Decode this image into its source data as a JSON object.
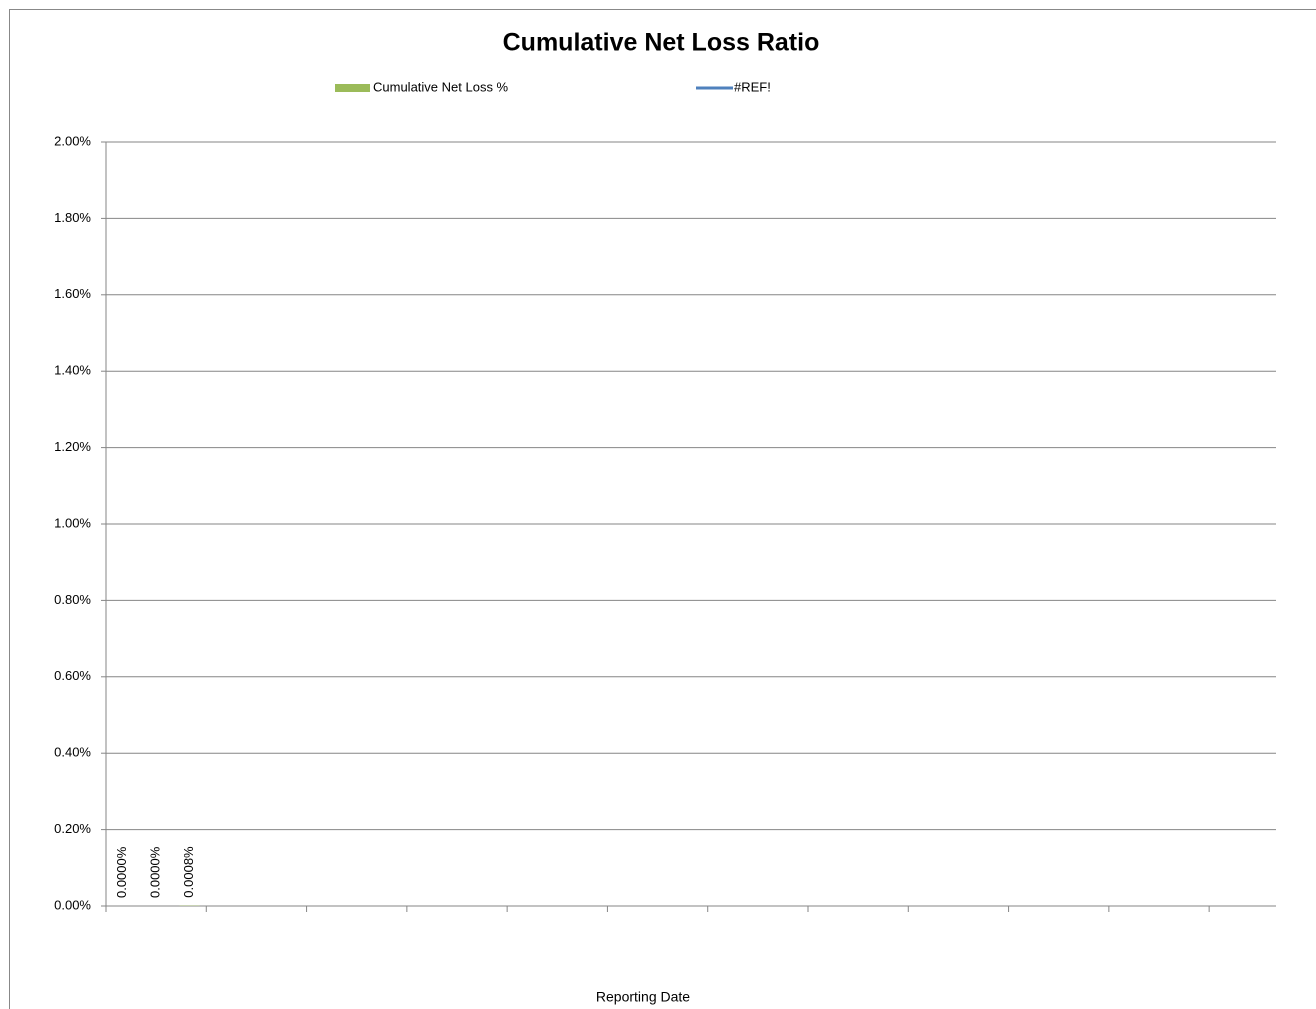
{
  "chart_data": {
    "type": "bar",
    "title": "Cumulative Net Loss Ratio",
    "x_label": "Reporting Date",
    "categories": [
      null,
      null,
      null,
      null,
      null,
      null,
      null,
      null,
      null,
      null,
      null,
      null,
      null,
      null,
      null,
      null,
      null,
      null,
      null,
      null,
      null,
      null,
      null,
      null,
      null,
      null,
      null,
      null,
      null,
      null,
      null,
      null,
      null,
      null,
      null
    ],
    "xtick_every": 3,
    "series": [
      {
        "name": "Cumulative Net Loss %",
        "type": "bar",
        "color": "#9bbb59",
        "values": [
          0,
          0,
          0.0008,
          null,
          null,
          null,
          null,
          null,
          null,
          null,
          null,
          null,
          null,
          null,
          null,
          null,
          null,
          null,
          null,
          null,
          null,
          null,
          null,
          null,
          null,
          null,
          null,
          null,
          null,
          null,
          null,
          null,
          null,
          null,
          null
        ],
        "value_labels": [
          "0.0000%",
          "0.0000%",
          "0.0008%",
          null,
          null,
          null,
          null,
          null,
          null,
          null,
          null,
          null,
          null,
          null,
          null,
          null,
          null,
          null,
          null,
          null,
          null,
          null,
          null,
          null,
          null,
          null,
          null,
          null,
          null,
          null,
          null,
          null,
          null,
          null,
          null
        ]
      },
      {
        "name": "#REF!",
        "type": "line",
        "color": "#4f81bd",
        "values": [
          null,
          null,
          null,
          null,
          null,
          null,
          null,
          null,
          null,
          null,
          null,
          null,
          null,
          null,
          null,
          null,
          null,
          null,
          null,
          null,
          null,
          null,
          null,
          null,
          null,
          null,
          null,
          null,
          null,
          null,
          null,
          null,
          null,
          null,
          null
        ]
      }
    ],
    "ylim": [
      0,
      2
    ],
    "yticks": [
      {
        "value": 0,
        "label": "0.00%"
      },
      {
        "value": 0.2,
        "label": "0.20%"
      },
      {
        "value": 0.4,
        "label": "0.40%"
      },
      {
        "value": 0.6,
        "label": "0.60%"
      },
      {
        "value": 0.8,
        "label": "0.80%"
      },
      {
        "value": 1,
        "label": "1.00%"
      },
      {
        "value": 1.2,
        "label": "1.20%"
      },
      {
        "value": 1.4,
        "label": "1.40%"
      },
      {
        "value": 1.6,
        "label": "1.60%"
      },
      {
        "value": 1.8,
        "label": "1.80%"
      },
      {
        "value": 2,
        "label": "2.00%"
      }
    ],
    "grid": true,
    "legend": "top"
  }
}
